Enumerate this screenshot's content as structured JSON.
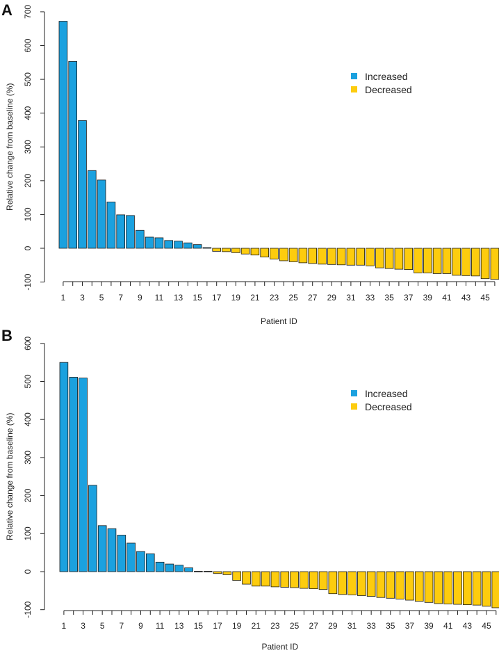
{
  "colors": {
    "increased": "#1ba1df",
    "decreased": "#fdcc0e",
    "axis": "#222222"
  },
  "chart_data": [
    {
      "panel": "A",
      "type": "bar",
      "xlabel": "Patient ID",
      "ylabel": "Relative change from baseline (%)",
      "ylim": [
        -100,
        700
      ],
      "yticks": [
        -100,
        0,
        100,
        200,
        300,
        400,
        500,
        600,
        700
      ],
      "xticks": [
        1,
        3,
        5,
        7,
        9,
        11,
        13,
        15,
        17,
        19,
        21,
        23,
        25,
        27,
        29,
        31,
        33,
        35,
        37,
        39,
        41,
        43,
        45
      ],
      "legend": [
        "Increased",
        "Decreased"
      ],
      "legend_position": "top-right",
      "values": [
        672,
        553,
        378,
        230,
        202,
        137,
        99,
        97,
        53,
        33,
        31,
        23,
        21,
        16,
        11,
        2,
        -9,
        -10,
        -13,
        -17,
        -20,
        -26,
        -32,
        -37,
        -40,
        -43,
        -45,
        -47,
        -48,
        -49,
        -50,
        -50,
        -52,
        -58,
        -60,
        -62,
        -63,
        -73,
        -73,
        -75,
        -75,
        -80,
        -81,
        -82,
        -90,
        -92
      ]
    },
    {
      "panel": "B",
      "type": "bar",
      "xlabel": "Patient ID",
      "ylabel": "Relative change from baseline (%)",
      "ylim": [
        -100,
        600
      ],
      "yticks": [
        -100,
        0,
        100,
        200,
        300,
        400,
        500,
        600
      ],
      "xticks": [
        1,
        3,
        5,
        7,
        9,
        11,
        13,
        15,
        17,
        19,
        21,
        23,
        25,
        27,
        29,
        31,
        33,
        35,
        37,
        39,
        41,
        43,
        45
      ],
      "legend": [
        "Increased",
        "Decreased"
      ],
      "legend_position": "top-right",
      "values": [
        550,
        511,
        509,
        227,
        121,
        113,
        96,
        75,
        53,
        47,
        25,
        20,
        17,
        10,
        1,
        1,
        -5,
        -8,
        -23,
        -33,
        -38,
        -38,
        -40,
        -41,
        -42,
        -44,
        -45,
        -47,
        -58,
        -60,
        -61,
        -63,
        -65,
        -68,
        -70,
        -72,
        -75,
        -78,
        -81,
        -84,
        -85,
        -86,
        -87,
        -88,
        -91,
        -95
      ]
    }
  ]
}
